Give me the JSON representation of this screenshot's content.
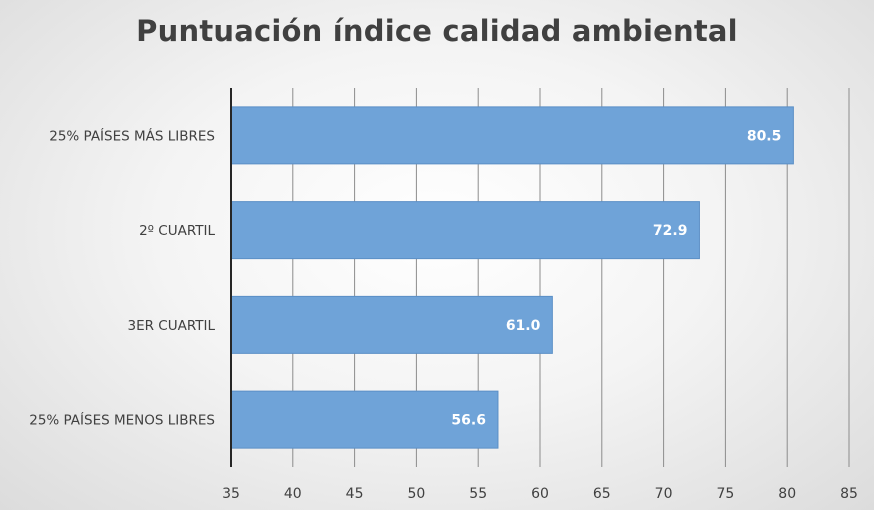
{
  "chart_data": {
    "type": "bar",
    "orientation": "horizontal",
    "title": "Puntuación índice calidad ambiental",
    "categories": [
      "25% PAÍSES MÁS LIBRES",
      "2º CUARTIL",
      "3ER CUARTIL",
      "25% PAÍSES MENOS LIBRES"
    ],
    "values": [
      80.5,
      72.9,
      61.0,
      56.6
    ],
    "data_labels": [
      "80.5",
      "72.9",
      "61.0",
      "56.6"
    ],
    "xlim": [
      35,
      85
    ],
    "xticks": [
      "35",
      "40",
      "45",
      "50",
      "55",
      "60",
      "65",
      "70",
      "75",
      "80",
      "85"
    ],
    "xlabel": "",
    "ylabel": "",
    "grid": true,
    "colors": {
      "bar_fill": "#6fa3d8",
      "bar_edge": "#5b8fc6",
      "grid": "#8c8c8c",
      "axis": "#262626",
      "text": "#404040"
    }
  }
}
